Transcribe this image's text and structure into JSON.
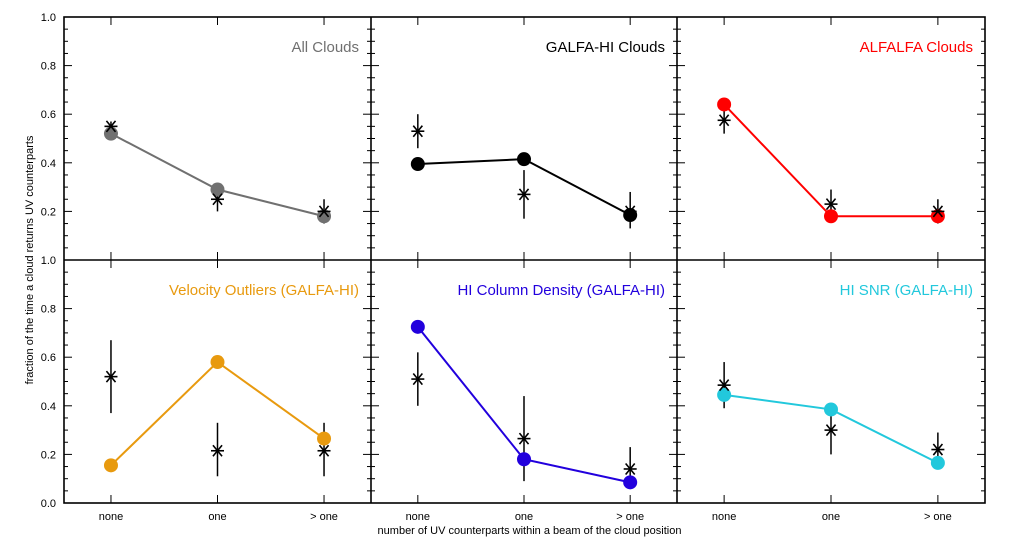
{
  "chart_data": {
    "type": "scatter",
    "ylabel": "fraction of the time a cloud returns UV counterparts",
    "xlabel": "number of UV counterparts within a beam of the cloud position",
    "categories": [
      "none",
      "one",
      "> one"
    ],
    "ylim": [
      0.0,
      1.0
    ],
    "yticks": [
      "0.0",
      "0.2",
      "0.4",
      "0.6",
      "0.8",
      "1.0"
    ],
    "yticks_top": [
      "0.2",
      "0.4",
      "0.6",
      "0.8",
      "1.0"
    ],
    "panels": [
      {
        "title": "All Clouds",
        "color": "#707070",
        "model": [
          0.52,
          0.29,
          0.18
        ],
        "observed": [
          0.55,
          0.25,
          0.2
        ],
        "err_low": [
          0.52,
          0.2,
          0.15
        ],
        "err_high": [
          0.57,
          0.3,
          0.25
        ]
      },
      {
        "title": "GALFA-HI Clouds",
        "color": "#000000",
        "model": [
          0.395,
          0.415,
          0.185
        ],
        "observed": [
          0.53,
          0.27,
          0.2
        ],
        "err_low": [
          0.46,
          0.17,
          0.13
        ],
        "err_high": [
          0.6,
          0.37,
          0.28
        ]
      },
      {
        "title": "ALFALFA Clouds",
        "color": "#ff0000",
        "model": [
          0.64,
          0.18,
          0.18
        ],
        "observed": [
          0.575,
          0.23,
          0.2
        ],
        "err_low": [
          0.52,
          0.17,
          0.15
        ],
        "err_high": [
          0.63,
          0.29,
          0.25
        ]
      },
      {
        "title": "Velocity Outliers (GALFA-HI)",
        "color": "#e89a0f",
        "model": [
          0.155,
          0.58,
          0.265
        ],
        "observed": [
          0.52,
          0.215,
          0.215
        ],
        "err_low": [
          0.37,
          0.11,
          0.11
        ],
        "err_high": [
          0.67,
          0.33,
          0.33
        ]
      },
      {
        "title": "HI Column Density (GALFA-HI)",
        "color": "#2200dd",
        "model": [
          0.725,
          0.18,
          0.085
        ],
        "observed": [
          0.51,
          0.265,
          0.14
        ],
        "err_low": [
          0.4,
          0.09,
          0.07
        ],
        "err_high": [
          0.62,
          0.44,
          0.23
        ]
      },
      {
        "title": "HI SNR (GALFA-HI)",
        "color": "#22c8dc",
        "model": [
          0.445,
          0.385,
          0.165
        ],
        "observed": [
          0.485,
          0.3,
          0.22
        ],
        "err_low": [
          0.39,
          0.2,
          0.15
        ],
        "err_high": [
          0.58,
          0.4,
          0.29
        ]
      }
    ]
  }
}
